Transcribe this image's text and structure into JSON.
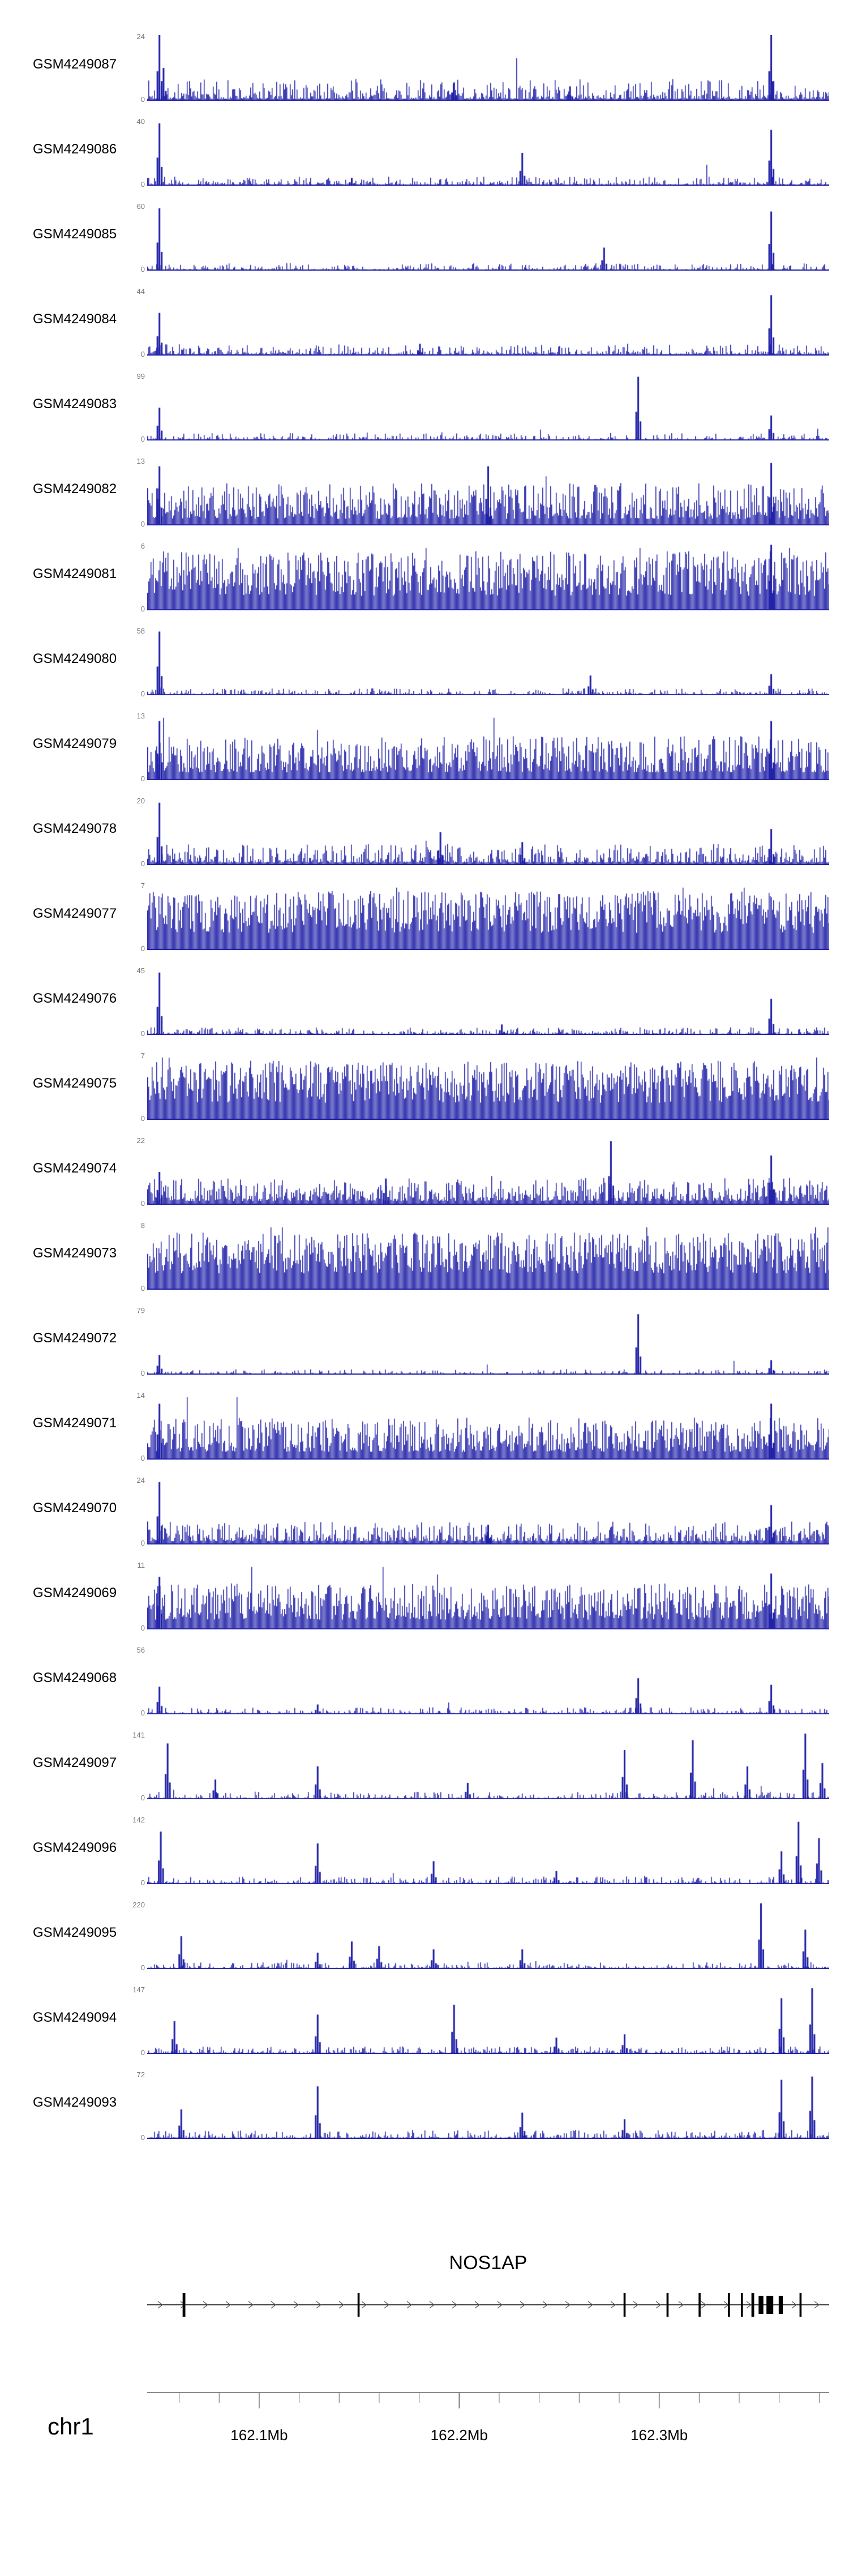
{
  "colors": {
    "signal": "#2121a8",
    "gene": "#000000",
    "axis_line": "#666666",
    "tiny_text": "#777777"
  },
  "chart_data": {
    "type": "area",
    "title": "",
    "legend": "none",
    "grid": false,
    "tracks": [
      {
        "label": "GSM4249087",
        "ymax": 24,
        "ymin": 0,
        "noise": {
          "base": 0.03,
          "amp": 0.3,
          "pow": 3.2
        },
        "peaks": [
          [
            0.018,
            1.0
          ],
          [
            0.024,
            0.5
          ],
          [
            0.45,
            0.28
          ],
          [
            0.62,
            0.22
          ],
          [
            0.915,
            1.0
          ]
        ]
      },
      {
        "label": "GSM4249086",
        "ymax": 40,
        "ymin": 0,
        "noise": {
          "base": 0.018,
          "amp": 0.12,
          "pow": 4.0
        },
        "peaks": [
          [
            0.018,
            0.95
          ],
          [
            0.3,
            0.12
          ],
          [
            0.55,
            0.5
          ],
          [
            0.915,
            0.85
          ]
        ]
      },
      {
        "label": "GSM4249085",
        "ymax": 60,
        "ymin": 0,
        "noise": {
          "base": 0.015,
          "amp": 0.1,
          "pow": 4.2
        },
        "peaks": [
          [
            0.018,
            0.95
          ],
          [
            0.67,
            0.35
          ],
          [
            0.915,
            0.9
          ]
        ]
      },
      {
        "label": "GSM4249084",
        "ymax": 44,
        "ymin": 0,
        "noise": {
          "base": 0.022,
          "amp": 0.15,
          "pow": 3.8
        },
        "peaks": [
          [
            0.018,
            0.65
          ],
          [
            0.4,
            0.18
          ],
          [
            0.915,
            0.92
          ]
        ]
      },
      {
        "label": "GSM4249083",
        "ymax": 99,
        "ymin": 0,
        "noise": {
          "base": 0.015,
          "amp": 0.1,
          "pow": 4.2
        },
        "peaks": [
          [
            0.018,
            0.5
          ],
          [
            0.72,
            0.97
          ],
          [
            0.915,
            0.38
          ]
        ]
      },
      {
        "label": "GSM4249082",
        "ymax": 13,
        "ymin": 0,
        "noise": {
          "base": 0.1,
          "amp": 0.55,
          "pow": 1.7
        },
        "peaks": [
          [
            0.018,
            0.9
          ],
          [
            0.5,
            0.9
          ],
          [
            0.915,
            0.95
          ]
        ]
      },
      {
        "label": "GSM4249081",
        "ymax": 6,
        "ymin": 0,
        "noise": {
          "base": 0.22,
          "amp": 0.68,
          "pow": 1.1
        },
        "peaks": [
          [
            0.915,
            1.0
          ]
        ]
      },
      {
        "label": "GSM4249080",
        "ymax": 58,
        "ymin": 0,
        "noise": {
          "base": 0.015,
          "amp": 0.09,
          "pow": 4.2
        },
        "peaks": [
          [
            0.018,
            0.97
          ],
          [
            0.65,
            0.3
          ],
          [
            0.915,
            0.32
          ]
        ]
      },
      {
        "label": "GSM4249079",
        "ymax": 13,
        "ymin": 0,
        "noise": {
          "base": 0.12,
          "amp": 0.55,
          "pow": 1.6
        },
        "peaks": [
          [
            0.018,
            0.9
          ],
          [
            0.915,
            0.9
          ]
        ]
      },
      {
        "label": "GSM4249078",
        "ymax": 20,
        "ymin": 0,
        "noise": {
          "base": 0.04,
          "amp": 0.28,
          "pow": 2.8
        },
        "peaks": [
          [
            0.018,
            0.95
          ],
          [
            0.43,
            0.5
          ],
          [
            0.55,
            0.35
          ],
          [
            0.915,
            0.55
          ]
        ]
      },
      {
        "label": "GSM4249077",
        "ymax": 7,
        "ymin": 0,
        "noise": {
          "base": 0.26,
          "amp": 0.64,
          "pow": 1.0
        },
        "peaks": []
      },
      {
        "label": "GSM4249076",
        "ymax": 45,
        "ymin": 0,
        "noise": {
          "base": 0.016,
          "amp": 0.1,
          "pow": 4.2
        },
        "peaks": [
          [
            0.018,
            0.95
          ],
          [
            0.52,
            0.16
          ],
          [
            0.915,
            0.55
          ]
        ]
      },
      {
        "label": "GSM4249075",
        "ymax": 7,
        "ymin": 0,
        "noise": {
          "base": 0.26,
          "amp": 0.64,
          "pow": 1.0
        },
        "peaks": []
      },
      {
        "label": "GSM4249074",
        "ymax": 22,
        "ymin": 0,
        "noise": {
          "base": 0.06,
          "amp": 0.35,
          "pow": 2.2
        },
        "peaks": [
          [
            0.018,
            0.5
          ],
          [
            0.35,
            0.4
          ],
          [
            0.68,
            0.97
          ],
          [
            0.915,
            0.75
          ]
        ]
      },
      {
        "label": "GSM4249073",
        "ymax": 8,
        "ymin": 0,
        "noise": {
          "base": 0.25,
          "amp": 0.62,
          "pow": 1.1
        },
        "peaks": []
      },
      {
        "label": "GSM4249072",
        "ymax": 79,
        "ymin": 0,
        "noise": {
          "base": 0.012,
          "amp": 0.07,
          "pow": 4.6
        },
        "peaks": [
          [
            0.018,
            0.3
          ],
          [
            0.72,
            0.92
          ],
          [
            0.915,
            0.22
          ]
        ]
      },
      {
        "label": "GSM4249071",
        "ymax": 14,
        "ymin": 0,
        "noise": {
          "base": 0.12,
          "amp": 0.52,
          "pow": 1.6
        },
        "peaks": [
          [
            0.018,
            0.85
          ],
          [
            0.915,
            0.85
          ]
        ]
      },
      {
        "label": "GSM4249070",
        "ymax": 24,
        "ymin": 0,
        "noise": {
          "base": 0.05,
          "amp": 0.3,
          "pow": 2.6
        },
        "peaks": [
          [
            0.018,
            0.95
          ],
          [
            0.5,
            0.3
          ],
          [
            0.915,
            0.6
          ]
        ]
      },
      {
        "label": "GSM4249069",
        "ymax": 11,
        "ymin": 0,
        "noise": {
          "base": 0.15,
          "amp": 0.55,
          "pow": 1.4
        },
        "peaks": [
          [
            0.018,
            0.8
          ],
          [
            0.915,
            0.85
          ]
        ]
      },
      {
        "label": "GSM4249068",
        "ymax": 56,
        "ymin": 0,
        "noise": {
          "base": 0.016,
          "amp": 0.09,
          "pow": 4.2
        },
        "peaks": [
          [
            0.018,
            0.42
          ],
          [
            0.25,
            0.15
          ],
          [
            0.72,
            0.55
          ],
          [
            0.915,
            0.45
          ]
        ]
      },
      {
        "label": "GSM4249097",
        "ymax": 141,
        "ymin": 0,
        "noise": {
          "base": 0.016,
          "amp": 0.1,
          "pow": 4.5
        },
        "peaks": [
          [
            0.03,
            0.85
          ],
          [
            0.1,
            0.3
          ],
          [
            0.25,
            0.5
          ],
          [
            0.47,
            0.25
          ],
          [
            0.7,
            0.75
          ],
          [
            0.8,
            0.9
          ],
          [
            0.88,
            0.5
          ],
          [
            0.965,
            1.0
          ],
          [
            0.99,
            0.55
          ]
        ]
      },
      {
        "label": "GSM4249096",
        "ymax": 142,
        "ymin": 0,
        "noise": {
          "base": 0.016,
          "amp": 0.1,
          "pow": 4.5
        },
        "peaks": [
          [
            0.02,
            0.8
          ],
          [
            0.25,
            0.62
          ],
          [
            0.42,
            0.35
          ],
          [
            0.6,
            0.2
          ],
          [
            0.93,
            0.5
          ],
          [
            0.955,
            0.95
          ],
          [
            0.985,
            0.7
          ]
        ]
      },
      {
        "label": "GSM4249095",
        "ymax": 220,
        "ymin": 0,
        "noise": {
          "base": 0.013,
          "amp": 0.09,
          "pow": 4.5
        },
        "peaks": [
          [
            0.05,
            0.5
          ],
          [
            0.25,
            0.25
          ],
          [
            0.3,
            0.42
          ],
          [
            0.34,
            0.35
          ],
          [
            0.42,
            0.3
          ],
          [
            0.55,
            0.3
          ],
          [
            0.9,
            1.0
          ],
          [
            0.965,
            0.6
          ]
        ]
      },
      {
        "label": "GSM4249094",
        "ymax": 147,
        "ymin": 0,
        "noise": {
          "base": 0.016,
          "amp": 0.1,
          "pow": 4.5
        },
        "peaks": [
          [
            0.04,
            0.5
          ],
          [
            0.25,
            0.6
          ],
          [
            0.45,
            0.75
          ],
          [
            0.6,
            0.25
          ],
          [
            0.7,
            0.3
          ],
          [
            0.93,
            0.85
          ],
          [
            0.975,
            1.0
          ]
        ]
      },
      {
        "label": "GSM4249093",
        "ymax": 72,
        "ymin": 0,
        "noise": {
          "base": 0.018,
          "amp": 0.12,
          "pow": 4.2
        },
        "peaks": [
          [
            0.05,
            0.45
          ],
          [
            0.25,
            0.8
          ],
          [
            0.55,
            0.4
          ],
          [
            0.7,
            0.3
          ],
          [
            0.93,
            0.9
          ],
          [
            0.975,
            0.95
          ]
        ]
      }
    ],
    "gene": {
      "name": "NOS1AP",
      "strand": "+",
      "exons": [
        {
          "x": 0.054,
          "w": 0.004,
          "thick": false
        },
        {
          "x": 0.31,
          "w": 0.003,
          "thick": false
        },
        {
          "x": 0.7,
          "w": 0.003,
          "thick": false
        },
        {
          "x": 0.763,
          "w": 0.003,
          "thick": false
        },
        {
          "x": 0.81,
          "w": 0.003,
          "thick": false
        },
        {
          "x": 0.853,
          "w": 0.003,
          "thick": false
        },
        {
          "x": 0.872,
          "w": 0.003,
          "thick": false
        },
        {
          "x": 0.888,
          "w": 0.004,
          "thick": false
        },
        {
          "x": 0.9,
          "w": 0.007,
          "thick": true
        },
        {
          "x": 0.913,
          "w": 0.01,
          "thick": true
        },
        {
          "x": 0.929,
          "w": 0.006,
          "thick": true
        },
        {
          "x": 0.958,
          "w": 0.003,
          "thick": false
        }
      ]
    },
    "axis": {
      "chrom": "chr1",
      "start_mb": 162.044,
      "end_mb": 162.385,
      "minor_step_mb": 0.02,
      "majors": [
        {
          "mb": 162.1,
          "label": "162.1Mb"
        },
        {
          "mb": 162.2,
          "label": "162.2Mb"
        },
        {
          "mb": 162.3,
          "label": "162.3Mb"
        }
      ]
    }
  }
}
